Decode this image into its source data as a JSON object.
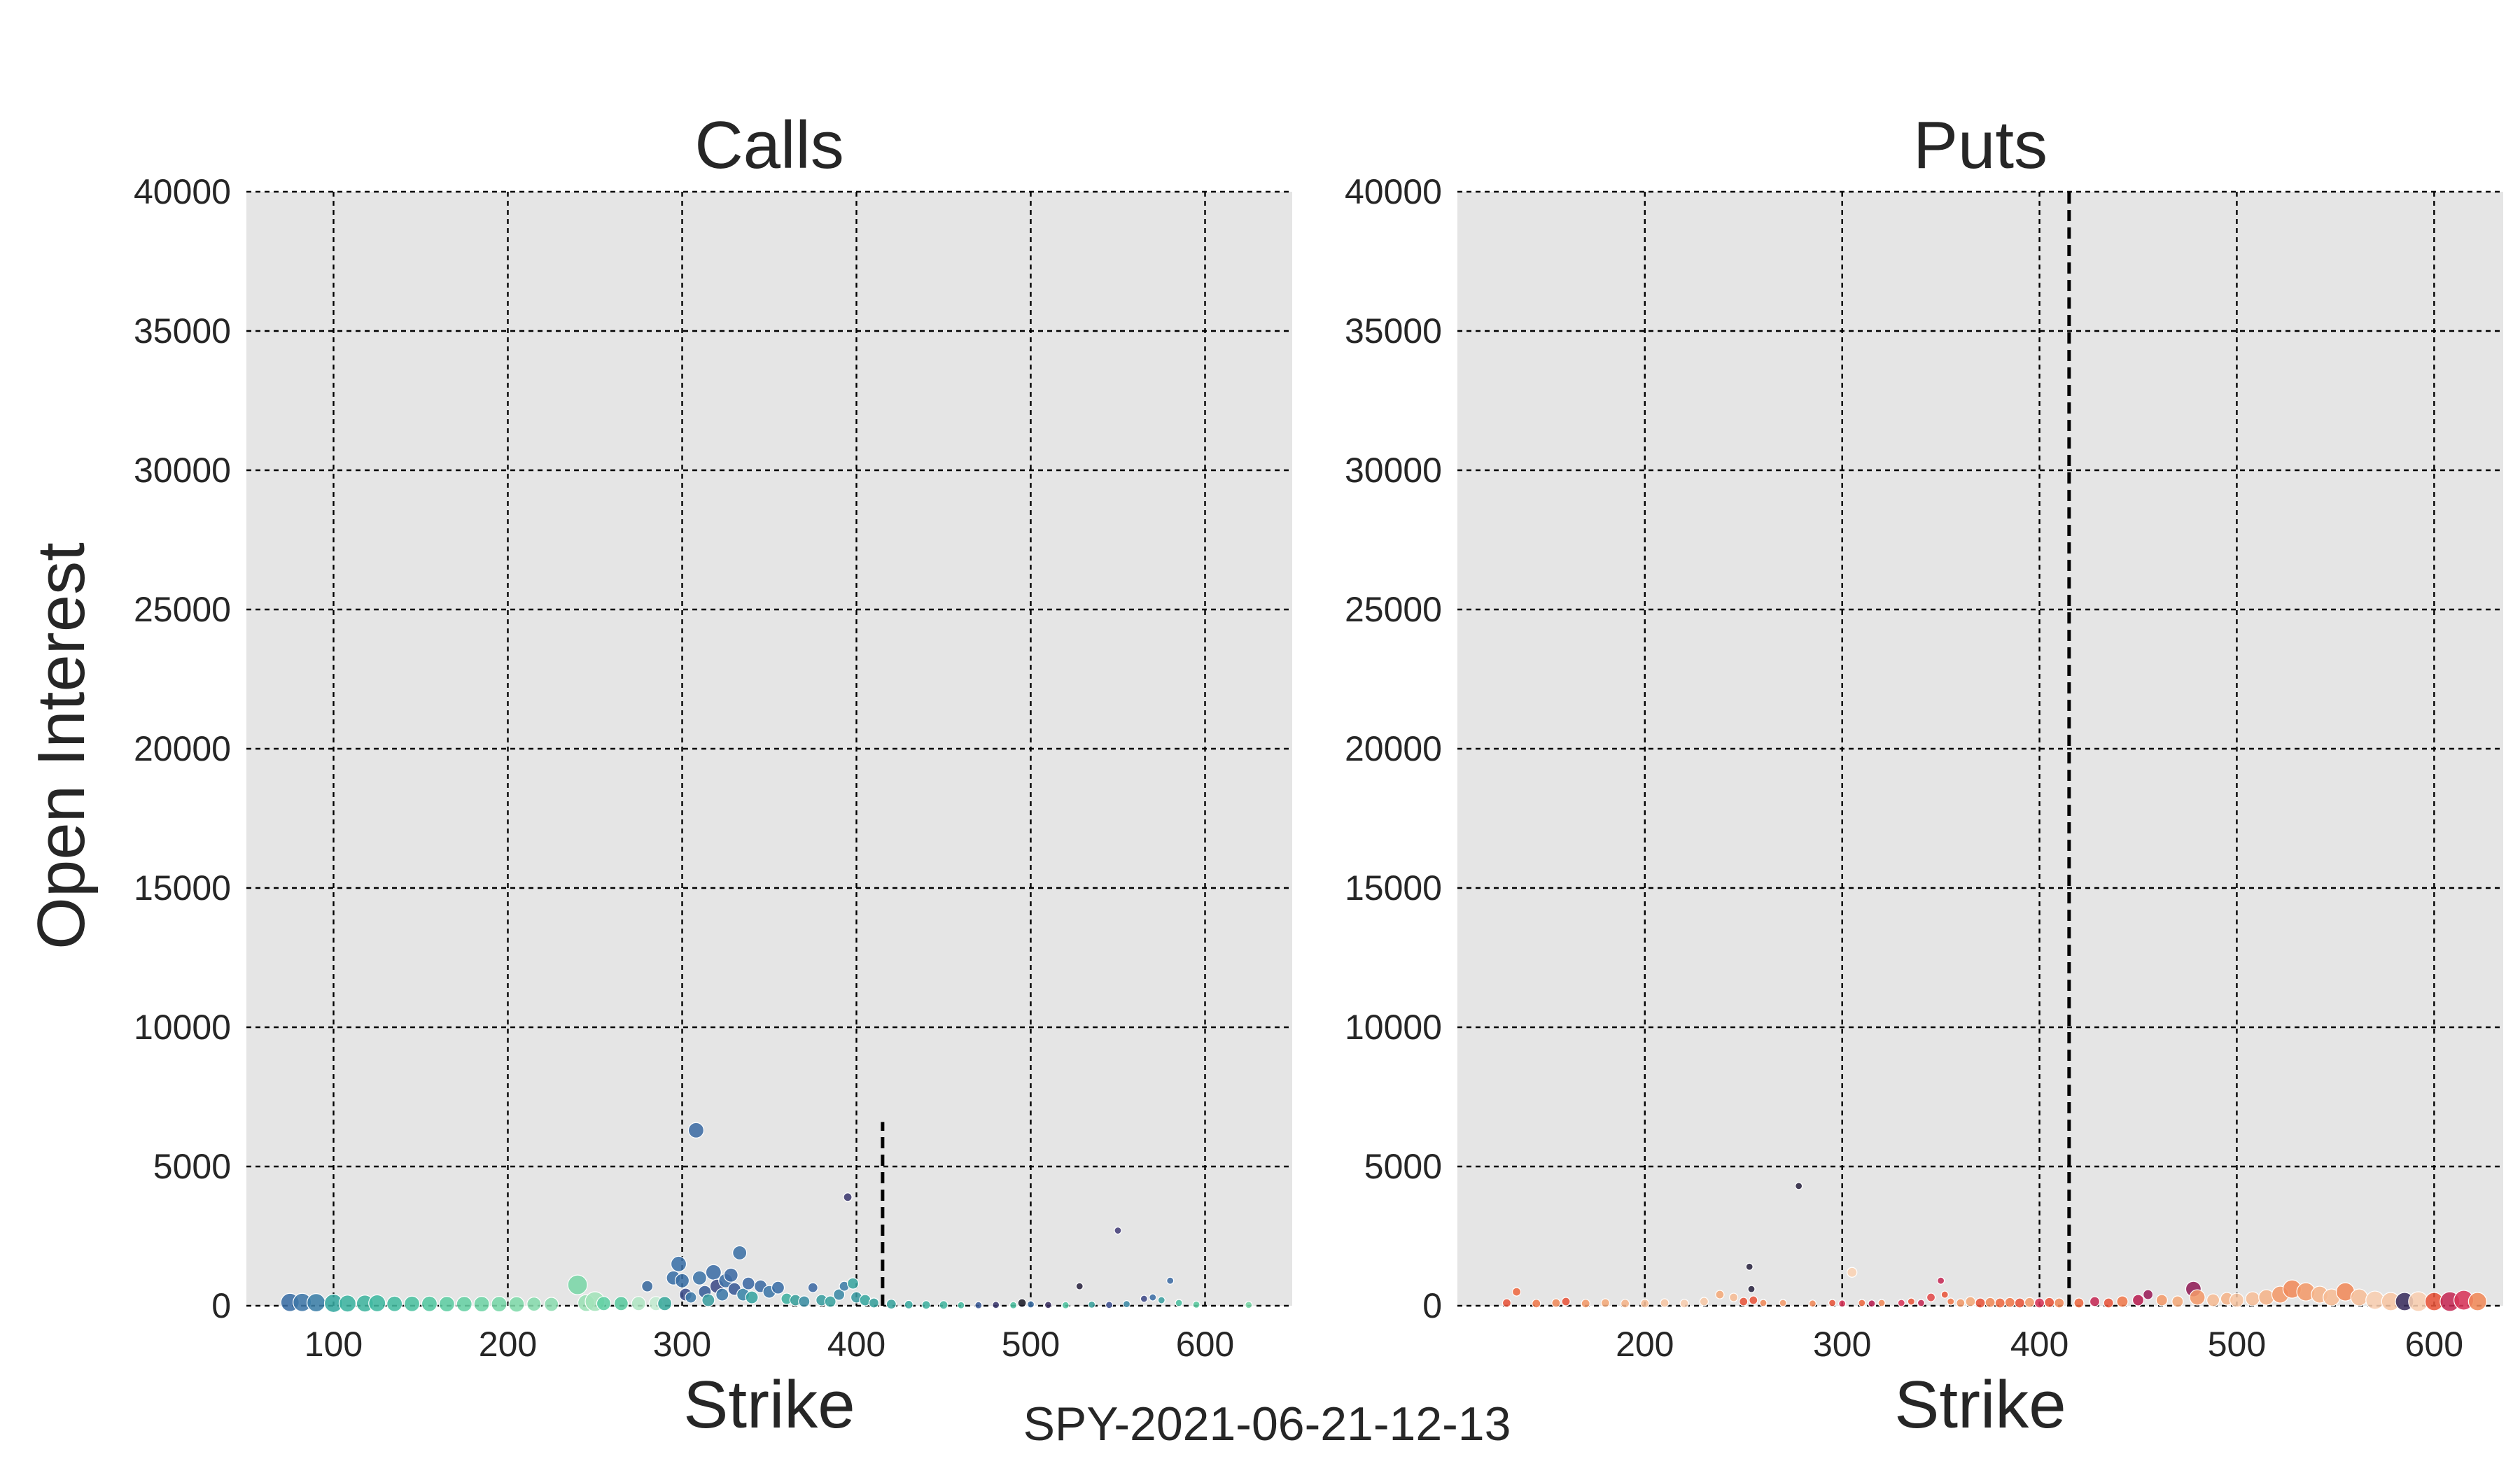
{
  "caption": "SPY-2021-06-21-12-13",
  "colors": {
    "panel_bg": "#e5e5e5",
    "price_line": "#000000"
  },
  "chart_data": [
    {
      "type": "scatter",
      "title": "Calls",
      "xlabel": "Strike",
      "ylabel": "Open Interest",
      "xlim": [
        50,
        650
      ],
      "ylim": [
        0,
        40000
      ],
      "xticks": [
        "100",
        "200",
        "300",
        "400",
        "500",
        "600"
      ],
      "xtick_values": [
        100,
        200,
        300,
        400,
        500,
        600
      ],
      "yticks": [
        "0",
        "5000",
        "10000",
        "15000",
        "20000",
        "25000",
        "30000",
        "35000",
        "40000"
      ],
      "ytick_values": [
        0,
        5000,
        10000,
        15000,
        20000,
        25000,
        30000,
        35000,
        40000
      ],
      "grid": true,
      "reference_line": {
        "x": 415,
        "y_max": 6600,
        "style": "dashed"
      },
      "points": [
        {
          "x": 75,
          "y": 120,
          "s": 13,
          "c": "#3b6ea5"
        },
        {
          "x": 82,
          "y": 120,
          "s": 13,
          "c": "#3f78a8"
        },
        {
          "x": 90,
          "y": 110,
          "s": 13,
          "c": "#3c7fa8"
        },
        {
          "x": 100,
          "y": 90,
          "s": 13,
          "c": "#37a9a0"
        },
        {
          "x": 108,
          "y": 80,
          "s": 12,
          "c": "#3db4a0"
        },
        {
          "x": 118,
          "y": 80,
          "s": 12,
          "c": "#41b59f"
        },
        {
          "x": 125,
          "y": 90,
          "s": 12,
          "c": "#40b8a0"
        },
        {
          "x": 135,
          "y": 70,
          "s": 11,
          "c": "#44bca0"
        },
        {
          "x": 145,
          "y": 70,
          "s": 11,
          "c": "#4cc2a0"
        },
        {
          "x": 155,
          "y": 70,
          "s": 11,
          "c": "#55c8a2"
        },
        {
          "x": 165,
          "y": 60,
          "s": 11,
          "c": "#5ecda3"
        },
        {
          "x": 175,
          "y": 60,
          "s": 11,
          "c": "#66d0a4"
        },
        {
          "x": 185,
          "y": 60,
          "s": 11,
          "c": "#6fd4a6"
        },
        {
          "x": 195,
          "y": 60,
          "s": 11,
          "c": "#78d7a8"
        },
        {
          "x": 205,
          "y": 50,
          "s": 11,
          "c": "#80d9aa"
        },
        {
          "x": 215,
          "y": 60,
          "s": 10,
          "c": "#86dbad"
        },
        {
          "x": 225,
          "y": 50,
          "s": 10,
          "c": "#8ddcb0"
        },
        {
          "x": 240,
          "y": 750,
          "s": 14,
          "c": "#7ad6a7"
        },
        {
          "x": 245,
          "y": 100,
          "s": 12,
          "c": "#9be0b5"
        },
        {
          "x": 250,
          "y": 150,
          "s": 14,
          "c": "#a3e3ba"
        },
        {
          "x": 255,
          "y": 80,
          "s": 10,
          "c": "#60cfa4"
        },
        {
          "x": 265,
          "y": 80,
          "s": 10,
          "c": "#5aca9f"
        },
        {
          "x": 275,
          "y": 80,
          "s": 10,
          "c": "#b0e6c4"
        },
        {
          "x": 280,
          "y": 700,
          "s": 8,
          "c": "#3a6a9e"
        },
        {
          "x": 285,
          "y": 80,
          "s": 10,
          "c": "#c3ebd0"
        },
        {
          "x": 290,
          "y": 80,
          "s": 10,
          "c": "#3aa89c"
        },
        {
          "x": 295,
          "y": 1000,
          "s": 10,
          "c": "#3a6fa6"
        },
        {
          "x": 298,
          "y": 1500,
          "s": 11,
          "c": "#3c72a8"
        },
        {
          "x": 300,
          "y": 900,
          "s": 10,
          "c": "#3b6fa5"
        },
        {
          "x": 302,
          "y": 400,
          "s": 9,
          "c": "#3f4e8c"
        },
        {
          "x": 305,
          "y": 300,
          "s": 8,
          "c": "#3f7aa8"
        },
        {
          "x": 308,
          "y": 6300,
          "s": 11,
          "c": "#3e6ca4"
        },
        {
          "x": 310,
          "y": 1000,
          "s": 10,
          "c": "#3f75a8"
        },
        {
          "x": 313,
          "y": 500,
          "s": 9,
          "c": "#3a5f98"
        },
        {
          "x": 315,
          "y": 200,
          "s": 9,
          "c": "#3c9fa0"
        },
        {
          "x": 318,
          "y": 1200,
          "s": 11,
          "c": "#3d6ea6"
        },
        {
          "x": 320,
          "y": 700,
          "s": 10,
          "c": "#404b88"
        },
        {
          "x": 323,
          "y": 400,
          "s": 9,
          "c": "#3e7aa8"
        },
        {
          "x": 325,
          "y": 900,
          "s": 10,
          "c": "#3e70a6"
        },
        {
          "x": 328,
          "y": 1100,
          "s": 10,
          "c": "#3f6ba4"
        },
        {
          "x": 330,
          "y": 600,
          "s": 9,
          "c": "#3a5a96"
        },
        {
          "x": 333,
          "y": 1900,
          "s": 10,
          "c": "#3d72a6"
        },
        {
          "x": 335,
          "y": 400,
          "s": 9,
          "c": "#3b85a8"
        },
        {
          "x": 338,
          "y": 800,
          "s": 9,
          "c": "#3e6aa4"
        },
        {
          "x": 340,
          "y": 300,
          "s": 9,
          "c": "#38a4a0"
        },
        {
          "x": 345,
          "y": 700,
          "s": 9,
          "c": "#3d6ca4"
        },
        {
          "x": 350,
          "y": 500,
          "s": 9,
          "c": "#3f78a8"
        },
        {
          "x": 355,
          "y": 650,
          "s": 9,
          "c": "#3b6ea6"
        },
        {
          "x": 360,
          "y": 250,
          "s": 8,
          "c": "#3fb0a0"
        },
        {
          "x": 365,
          "y": 200,
          "s": 8,
          "c": "#3aa09c"
        },
        {
          "x": 370,
          "y": 150,
          "s": 8,
          "c": "#3c8ea4"
        },
        {
          "x": 375,
          "y": 650,
          "s": 7,
          "c": "#3e6aa4"
        },
        {
          "x": 380,
          "y": 200,
          "s": 8,
          "c": "#3a9ea0"
        },
        {
          "x": 385,
          "y": 150,
          "s": 8,
          "c": "#3ca4a0"
        },
        {
          "x": 390,
          "y": 400,
          "s": 8,
          "c": "#3c8aa6"
        },
        {
          "x": 393,
          "y": 700,
          "s": 7,
          "c": "#3f7ea8"
        },
        {
          "x": 395,
          "y": 3900,
          "s": 6,
          "c": "#3d3a70"
        },
        {
          "x": 398,
          "y": 800,
          "s": 8,
          "c": "#3aa6a0"
        },
        {
          "x": 400,
          "y": 300,
          "s": 8,
          "c": "#3a9aa0"
        },
        {
          "x": 405,
          "y": 200,
          "s": 8,
          "c": "#3aa8a0"
        },
        {
          "x": 410,
          "y": 100,
          "s": 7,
          "c": "#38a09c"
        },
        {
          "x": 420,
          "y": 60,
          "s": 7,
          "c": "#3aa49e"
        },
        {
          "x": 430,
          "y": 40,
          "s": 6,
          "c": "#3aaaa0"
        },
        {
          "x": 440,
          "y": 30,
          "s": 6,
          "c": "#40b2a0"
        },
        {
          "x": 450,
          "y": 30,
          "s": 6,
          "c": "#44b6a0"
        },
        {
          "x": 460,
          "y": 20,
          "s": 5,
          "c": "#48baa0"
        },
        {
          "x": 470,
          "y": 20,
          "s": 5,
          "c": "#3a5a96"
        },
        {
          "x": 480,
          "y": 30,
          "s": 5,
          "c": "#3d3a70"
        },
        {
          "x": 490,
          "y": 20,
          "s": 5,
          "c": "#4cc0a0"
        },
        {
          "x": 495,
          "y": 100,
          "s": 6,
          "c": "#1e1e2a"
        },
        {
          "x": 500,
          "y": 50,
          "s": 5,
          "c": "#3b6ea5"
        },
        {
          "x": 510,
          "y": 30,
          "s": 5,
          "c": "#3a2f5e"
        },
        {
          "x": 520,
          "y": 20,
          "s": 5,
          "c": "#50c4a0"
        },
        {
          "x": 528,
          "y": 700,
          "s": 5,
          "c": "#2a2440"
        },
        {
          "x": 535,
          "y": 40,
          "s": 5,
          "c": "#3aa09c"
        },
        {
          "x": 545,
          "y": 30,
          "s": 5,
          "c": "#3e5090"
        },
        {
          "x": 550,
          "y": 2700,
          "s": 5,
          "c": "#46407a"
        },
        {
          "x": 555,
          "y": 60,
          "s": 5,
          "c": "#3c8aa6"
        },
        {
          "x": 565,
          "y": 250,
          "s": 5,
          "c": "#3f4a88"
        },
        {
          "x": 570,
          "y": 300,
          "s": 5,
          "c": "#3c6ea6"
        },
        {
          "x": 575,
          "y": 200,
          "s": 5,
          "c": "#3c9fa0"
        },
        {
          "x": 580,
          "y": 900,
          "s": 5,
          "c": "#3e6ca4"
        },
        {
          "x": 585,
          "y": 100,
          "s": 5,
          "c": "#4cc0a0"
        },
        {
          "x": 595,
          "y": 40,
          "s": 5,
          "c": "#5aca9f"
        },
        {
          "x": 625,
          "y": 30,
          "s": 5,
          "c": "#7ad6a7"
        }
      ]
    },
    {
      "type": "scatter",
      "title": "Puts",
      "xlabel": "Strike",
      "ylabel": "",
      "xlim": [
        105,
        635
      ],
      "ylim": [
        0,
        40000
      ],
      "xticks": [
        "200",
        "300",
        "400",
        "500",
        "600"
      ],
      "xtick_values": [
        200,
        300,
        400,
        500,
        600
      ],
      "yticks": [
        "0",
        "5000",
        "10000",
        "15000",
        "20000",
        "25000",
        "30000",
        "35000",
        "40000"
      ],
      "ytick_values": [
        0,
        5000,
        10000,
        15000,
        20000,
        25000,
        30000,
        35000,
        40000
      ],
      "grid": true,
      "reference_line": {
        "x": 415,
        "y_max": 40000,
        "style": "dashed"
      },
      "points": [
        {
          "x": 130,
          "y": 100,
          "s": 6,
          "c": "#e8553b"
        },
        {
          "x": 135,
          "y": 500,
          "s": 6,
          "c": "#ee6a42"
        },
        {
          "x": 145,
          "y": 80,
          "s": 6,
          "c": "#f07a4c"
        },
        {
          "x": 155,
          "y": 100,
          "s": 6,
          "c": "#f08a5a"
        },
        {
          "x": 160,
          "y": 150,
          "s": 6,
          "c": "#e8553b"
        },
        {
          "x": 170,
          "y": 80,
          "s": 6,
          "c": "#f29a6a"
        },
        {
          "x": 180,
          "y": 100,
          "s": 6,
          "c": "#f4aa7a"
        },
        {
          "x": 190,
          "y": 80,
          "s": 6,
          "c": "#f5b48a"
        },
        {
          "x": 200,
          "y": 80,
          "s": 6,
          "c": "#f6be98"
        },
        {
          "x": 210,
          "y": 100,
          "s": 6,
          "c": "#f7c6a4"
        },
        {
          "x": 220,
          "y": 80,
          "s": 6,
          "c": "#f8ceb0"
        },
        {
          "x": 230,
          "y": 150,
          "s": 6,
          "c": "#f7c8a6"
        },
        {
          "x": 238,
          "y": 400,
          "s": 6,
          "c": "#f4aa7a"
        },
        {
          "x": 245,
          "y": 300,
          "s": 6,
          "c": "#f6bc95"
        },
        {
          "x": 250,
          "y": 150,
          "s": 6,
          "c": "#e8553b"
        },
        {
          "x": 253,
          "y": 1400,
          "s": 5,
          "c": "#2a2440"
        },
        {
          "x": 254,
          "y": 600,
          "s": 5,
          "c": "#2a2440"
        },
        {
          "x": 255,
          "y": 200,
          "s": 6,
          "c": "#e8553b"
        },
        {
          "x": 260,
          "y": 100,
          "s": 5,
          "c": "#f08a5a"
        },
        {
          "x": 270,
          "y": 100,
          "s": 5,
          "c": "#f29a6a"
        },
        {
          "x": 278,
          "y": 4300,
          "s": 5,
          "c": "#2a2440"
        },
        {
          "x": 285,
          "y": 80,
          "s": 5,
          "c": "#f08a5a"
        },
        {
          "x": 295,
          "y": 100,
          "s": 5,
          "c": "#e8553b"
        },
        {
          "x": 300,
          "y": 80,
          "s": 5,
          "c": "#d8365a"
        },
        {
          "x": 305,
          "y": 1200,
          "s": 7,
          "c": "#fbd3b4"
        },
        {
          "x": 310,
          "y": 100,
          "s": 5,
          "c": "#ee6a42"
        },
        {
          "x": 315,
          "y": 80,
          "s": 5,
          "c": "#b81f52"
        },
        {
          "x": 320,
          "y": 100,
          "s": 5,
          "c": "#f08a5a"
        },
        {
          "x": 330,
          "y": 100,
          "s": 5,
          "c": "#d8365a"
        },
        {
          "x": 335,
          "y": 150,
          "s": 5,
          "c": "#e8553b"
        },
        {
          "x": 340,
          "y": 100,
          "s": 5,
          "c": "#c52a55"
        },
        {
          "x": 345,
          "y": 300,
          "s": 6,
          "c": "#e24b4b"
        },
        {
          "x": 350,
          "y": 900,
          "s": 5,
          "c": "#c52a55"
        },
        {
          "x": 352,
          "y": 400,
          "s": 5,
          "c": "#e8553b"
        },
        {
          "x": 355,
          "y": 150,
          "s": 5,
          "c": "#f07a4c"
        },
        {
          "x": 360,
          "y": 100,
          "s": 6,
          "c": "#f29a6a"
        },
        {
          "x": 365,
          "y": 150,
          "s": 7,
          "c": "#f4aa7a"
        },
        {
          "x": 370,
          "y": 100,
          "s": 7,
          "c": "#e8553b"
        },
        {
          "x": 375,
          "y": 120,
          "s": 7,
          "c": "#f08a5a"
        },
        {
          "x": 380,
          "y": 100,
          "s": 7,
          "c": "#ee6a42"
        },
        {
          "x": 385,
          "y": 120,
          "s": 7,
          "c": "#f07a4c"
        },
        {
          "x": 390,
          "y": 100,
          "s": 7,
          "c": "#e8553b"
        },
        {
          "x": 395,
          "y": 120,
          "s": 7,
          "c": "#f29a6a"
        },
        {
          "x": 400,
          "y": 100,
          "s": 7,
          "c": "#d8365a"
        },
        {
          "x": 405,
          "y": 120,
          "s": 7,
          "c": "#e8553b"
        },
        {
          "x": 410,
          "y": 100,
          "s": 7,
          "c": "#f08a5a"
        },
        {
          "x": 420,
          "y": 100,
          "s": 7,
          "c": "#ee6a42"
        },
        {
          "x": 428,
          "y": 150,
          "s": 7,
          "c": "#c52a55"
        },
        {
          "x": 435,
          "y": 100,
          "s": 7,
          "c": "#e8553b"
        },
        {
          "x": 442,
          "y": 150,
          "s": 8,
          "c": "#f07a4c"
        },
        {
          "x": 450,
          "y": 200,
          "s": 8,
          "c": "#b81f52"
        },
        {
          "x": 455,
          "y": 400,
          "s": 7,
          "c": "#9a1c58"
        },
        {
          "x": 462,
          "y": 200,
          "s": 8,
          "c": "#f29a6a"
        },
        {
          "x": 470,
          "y": 150,
          "s": 8,
          "c": "#f4aa7a"
        },
        {
          "x": 478,
          "y": 600,
          "s": 11,
          "c": "#8f1d57"
        },
        {
          "x": 480,
          "y": 300,
          "s": 11,
          "c": "#f29a6a"
        },
        {
          "x": 488,
          "y": 200,
          "s": 9,
          "c": "#f6bc95"
        },
        {
          "x": 495,
          "y": 250,
          "s": 9,
          "c": "#f5b48a"
        },
        {
          "x": 500,
          "y": 200,
          "s": 10,
          "c": "#f7c6a4"
        },
        {
          "x": 508,
          "y": 250,
          "s": 10,
          "c": "#f6be98"
        },
        {
          "x": 515,
          "y": 300,
          "s": 11,
          "c": "#f5b48a"
        },
        {
          "x": 522,
          "y": 400,
          "s": 12,
          "c": "#f29a6a"
        },
        {
          "x": 528,
          "y": 600,
          "s": 13,
          "c": "#f08a5a"
        },
        {
          "x": 535,
          "y": 500,
          "s": 13,
          "c": "#f29a6a"
        },
        {
          "x": 542,
          "y": 400,
          "s": 12,
          "c": "#f5b48a"
        },
        {
          "x": 548,
          "y": 300,
          "s": 12,
          "c": "#f6bc95"
        },
        {
          "x": 555,
          "y": 500,
          "s": 13,
          "c": "#f08a5a"
        },
        {
          "x": 562,
          "y": 300,
          "s": 12,
          "c": "#f6be98"
        },
        {
          "x": 570,
          "y": 200,
          "s": 13,
          "c": "#f8ceb0"
        },
        {
          "x": 578,
          "y": 150,
          "s": 13,
          "c": "#f7c6a4"
        },
        {
          "x": 585,
          "y": 150,
          "s": 13,
          "c": "#3a2f5e"
        },
        {
          "x": 592,
          "y": 150,
          "s": 14,
          "c": "#f8ceb0"
        },
        {
          "x": 600,
          "y": 150,
          "s": 13,
          "c": "#e8553b"
        },
        {
          "x": 608,
          "y": 150,
          "s": 14,
          "c": "#c52a55"
        },
        {
          "x": 615,
          "y": 200,
          "s": 14,
          "c": "#d8365a"
        },
        {
          "x": 622,
          "y": 150,
          "s": 13,
          "c": "#f08a5a"
        }
      ]
    }
  ]
}
